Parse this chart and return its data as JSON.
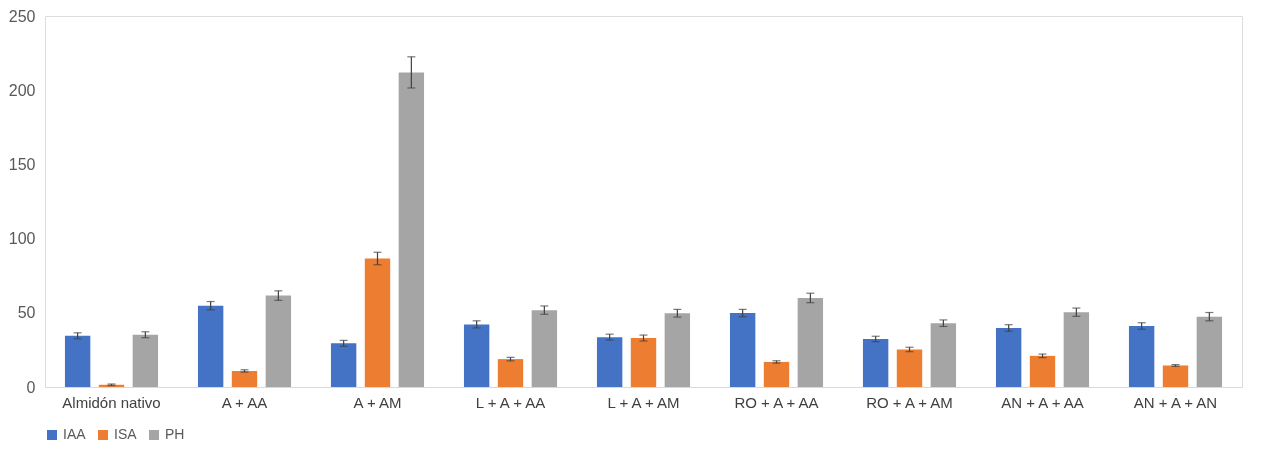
{
  "chart_data": {
    "type": "bar",
    "categories": [
      "Almidón nativo",
      "A + AA",
      "A + AM",
      "L + A + AA",
      "L + A + AM",
      "RO + A + AA",
      "RO + A + AM",
      "AN + A + AA",
      "AN + A + AN"
    ],
    "series": [
      {
        "name": "IAA",
        "color": "#4472c4",
        "values": [
          34.5,
          54.8,
          29.4,
          42.2,
          33.6,
          49.8,
          32.4,
          39.8,
          41.1
        ],
        "errors": [
          2,
          2.8,
          2,
          2.4,
          2,
          2.5,
          1.8,
          2.2,
          2.2
        ]
      },
      {
        "name": "ISA",
        "color": "#ed7d31",
        "values": [
          1.5,
          10.8,
          86.6,
          18.8,
          33.0,
          16.9,
          25.3,
          21.0,
          14.5
        ],
        "errors": [
          0.5,
          0.8,
          4.2,
          1.2,
          2,
          0.8,
          1.5,
          1.2,
          0.6
        ]
      },
      {
        "name": "PH",
        "color": "#a5a5a5",
        "values": [
          35.2,
          61.6,
          212.0,
          51.8,
          49.7,
          60.0,
          43.0,
          50.4,
          47.4
        ],
        "errors": [
          2,
          3.2,
          10.5,
          2.8,
          2.6,
          3.2,
          2.2,
          2.8,
          2.8
        ]
      }
    ],
    "ylim": [
      0,
      250
    ],
    "yticks": [
      0,
      50,
      100,
      150,
      200,
      250
    ],
    "legend": "bottom",
    "grid": false
  }
}
